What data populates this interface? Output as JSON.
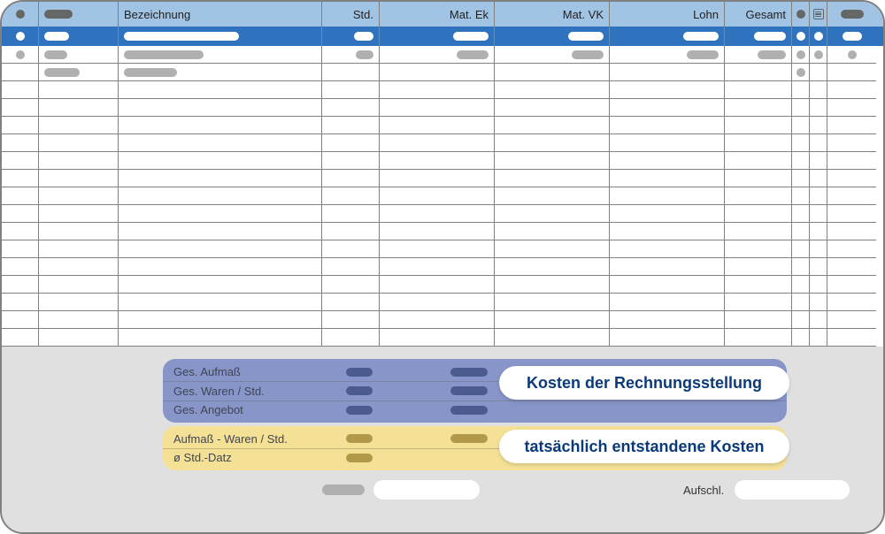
{
  "colors": {
    "header_bg": "#a1c3e4",
    "selected_row_bg": "#2f72bd",
    "row_bg": "#ffffff",
    "grid_line": "#808080",
    "footer_bg": "#e0e0e0",
    "box_blue": "#8795c8",
    "box_yellow": "#f4e196",
    "callout_text": "#0a3a7a",
    "pill_dark": "#656666",
    "pill_gray": "#b0b0b0"
  },
  "columns": {
    "bezeichnung": "Bezeichnung",
    "std": "Std.",
    "mat_ek": "Mat. Ek",
    "mat_vk": "Mat. VK",
    "lohn": "Lohn",
    "gesamt": "Gesamt"
  },
  "summary": {
    "blue": {
      "row1": "Ges. Aufmaß",
      "row2": "Ges. Waren / Std.",
      "row3": "Ges. Angebot"
    },
    "yellow": {
      "row1": "Aufmaß - Waren / Std.",
      "row2": "ø Std.-Datz"
    }
  },
  "callouts": {
    "billing_costs": "Kosten der Rechnungsstellung",
    "actual_costs": "tatsächlich entstandene Kosten"
  },
  "bottom": {
    "aufschl": "Aufschl."
  },
  "empty_rows": 16
}
